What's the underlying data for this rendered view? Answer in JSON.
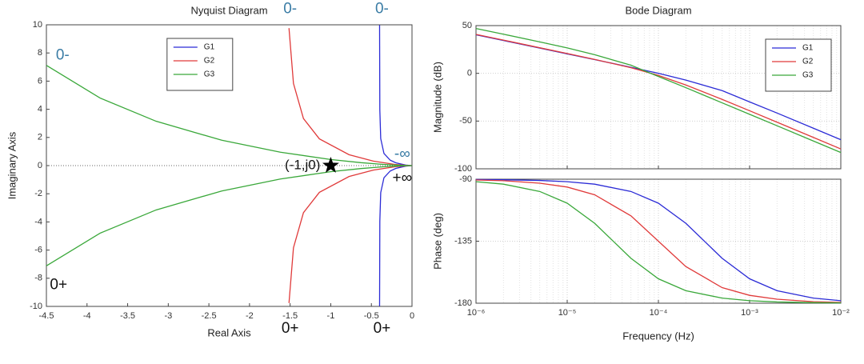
{
  "chart_data": [
    {
      "type": "line",
      "title": "Nyquist Diagram",
      "x_label": "Real Axis",
      "y_label": "Imaginary Axis",
      "xlim": [
        -4.5,
        0
      ],
      "xticks": [
        -4.5,
        -4,
        -3.5,
        -3,
        -2.5,
        -2,
        -1.5,
        -1,
        -0.5,
        0
      ],
      "ylim": [
        -10,
        10
      ],
      "yticks": [
        -10,
        -8,
        -6,
        -4,
        -2,
        0,
        2,
        4,
        6,
        8,
        10
      ],
      "grid": false,
      "legend": "upper center",
      "series": [
        {
          "name": "G1",
          "color": "#2b2bd6",
          "x": [
            -0.399,
            -0.396,
            -0.385,
            -0.345,
            -0.268,
            -0.2,
            -0.08,
            -0.015,
            0,
            -0.015,
            -0.08,
            -0.2,
            -0.268,
            -0.345,
            -0.385,
            -0.396,
            -0.399
          ],
          "values": [
            9.98,
            3.96,
            1.92,
            0.862,
            0.383,
            0.2,
            0.04,
            0.003,
            0,
            -0.003,
            -0.04,
            -0.2,
            -0.383,
            -0.862,
            -1.92,
            -3.96,
            -9.98
          ]
        },
        {
          "name": "G2",
          "color": "#e03a3a",
          "x": [
            -1.514,
            -1.459,
            -1.336,
            -1.14,
            -0.775,
            -0.477,
            -0.214,
            -0.06,
            0,
            -0.06,
            -0.214,
            -0.477,
            -0.775,
            -1.14,
            -1.336,
            -1.459,
            -1.514
          ],
          "values": [
            9.76,
            5.835,
            3.341,
            1.9,
            0.775,
            0.318,
            0.086,
            0.012,
            0,
            -0.012,
            -0.086,
            -0.318,
            -0.775,
            -1.9,
            -3.341,
            -5.835,
            -9.76
          ]
        },
        {
          "name": "G3",
          "color": "#3aa83a",
          "x": [
            -4.5,
            -3.841,
            -3.15,
            -2.342,
            -1.62,
            -1.002,
            -0.63,
            -0.371,
            -0.17,
            -0.062,
            0,
            -0.062,
            -0.17,
            -0.371,
            -0.63,
            -1.002,
            -1.62,
            -2.342,
            -3.15,
            -3.841,
            -4.5
          ],
          "values": [
            7.12,
            4.802,
            3.15,
            1.801,
            0.953,
            0.435,
            0.21,
            0.093,
            0.028,
            0.006,
            0,
            -0.006,
            -0.028,
            -0.093,
            -0.21,
            -0.435,
            -0.953,
            -1.801,
            -3.15,
            -4.802,
            -7.12
          ]
        }
      ],
      "annotations": [
        {
          "text": "0-",
          "x": -4.3,
          "y": 7.8,
          "color": "#3a7ca5"
        },
        {
          "text": "0-",
          "x": -1.5,
          "y": 11.1,
          "color": "#3a7ca5"
        },
        {
          "text": "0-",
          "x": -0.37,
          "y": 11.1,
          "color": "#3a7ca5"
        },
        {
          "text": "0+",
          "x": -4.35,
          "y": -8.5,
          "color": "#111111"
        },
        {
          "text": "0+",
          "x": -1.5,
          "y": -11.6,
          "color": "#111111"
        },
        {
          "text": "0+",
          "x": -0.37,
          "y": -11.6,
          "color": "#111111"
        },
        {
          "text": "-∞",
          "x": -0.12,
          "y": 0.8,
          "color": "#3a7ca5"
        },
        {
          "text": "+∞",
          "x": -0.12,
          "y": -0.9,
          "color": "#111111"
        },
        {
          "text": "(-1,j0)",
          "x": -1,
          "y": 0,
          "color": "#111111",
          "marker": "star"
        }
      ]
    },
    {
      "type": "line",
      "title": "Bode Diagram",
      "y_label": "Magnitude (dB)",
      "xscale": "log",
      "xlim": [
        1e-06,
        0.01
      ],
      "ylim": [
        -100,
        50
      ],
      "yticks": [
        -100,
        -50,
        0,
        50
      ],
      "grid": true,
      "legend": "upper right",
      "x": [
        1e-06,
        2e-06,
        5e-06,
        1e-05,
        2e-05,
        5e-05,
        0.0001,
        0.0002,
        0.0005,
        0.001,
        0.002,
        0.005,
        0.01
      ],
      "series": [
        {
          "name": "G1",
          "color": "#2b2bd6",
          "values": [
            40.4,
            34.4,
            26.4,
            20.4,
            14.4,
            6.3,
            0.0,
            -7.1,
            -18.1,
            -29.9,
            -41.6,
            -57.5,
            -69.5
          ]
        },
        {
          "name": "G2",
          "color": "#e03a3a",
          "values": [
            40.8,
            34.8,
            26.8,
            20.8,
            14.6,
            5.9,
            -2.2,
            -12.2,
            -27.3,
            -39.2,
            -51.2,
            -67.1,
            -79.2
          ]
        },
        {
          "name": "G3",
          "color": "#3aa83a",
          "values": [
            47.0,
            41.0,
            32.9,
            26.6,
            19.5,
            8.5,
            -3.3,
            -15.0,
            -30.9,
            -42.9,
            -54.9,
            -70.9,
            -82.9
          ]
        }
      ]
    },
    {
      "type": "line",
      "x_label": "Frequency (Hz)",
      "y_label": "Phase (deg)",
      "xscale": "log",
      "xlim": [
        1e-06,
        0.01
      ],
      "xticks": [
        {
          "value": 1e-06,
          "label": "10⁻⁶"
        },
        {
          "value": 1e-05,
          "label": "10⁻⁵"
        },
        {
          "value": 0.0001,
          "label": "10⁻⁴"
        },
        {
          "value": 0.001,
          "label": "10⁻³"
        },
        {
          "value": 0.01,
          "label": "10⁻²"
        }
      ],
      "ylim": [
        -180,
        -90
      ],
      "yticks": [
        -90,
        -135,
        -180
      ],
      "grid": true,
      "x": [
        1e-06,
        2e-06,
        5e-06,
        1e-05,
        2e-05,
        5e-05,
        0.0001,
        0.0002,
        0.0005,
        0.001,
        0.002,
        0.005,
        0.01
      ],
      "series": [
        {
          "color": "#2b2bd6",
          "values": [
            -90.2,
            -90.4,
            -90.9,
            -91.8,
            -93.6,
            -98.9,
            -107.4,
            -122.0,
            -147.4,
            -162.3,
            -170.9,
            -176.3,
            -178.2
          ]
        },
        {
          "color": "#e03a3a",
          "values": [
            -90.6,
            -91.1,
            -92.9,
            -95.7,
            -101.3,
            -116.6,
            -135.0,
            -153.4,
            -168.7,
            -174.3,
            -177.1,
            -178.9,
            -179.4
          ]
        },
        {
          "color": "#3aa83a",
          "values": [
            -91.8,
            -93.6,
            -98.9,
            -107.4,
            -122.0,
            -147.4,
            -162.3,
            -170.9,
            -176.3,
            -178.2,
            -179.1,
            -179.6,
            -179.8
          ]
        }
      ]
    }
  ]
}
